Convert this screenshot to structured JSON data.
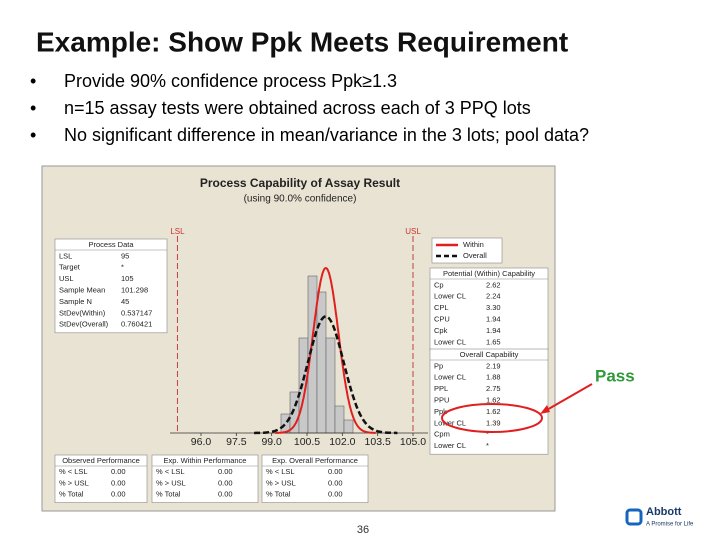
{
  "title": "Example: Show Ppk Meets Requirement",
  "bullets": [
    "Provide 90% confidence process Ppk≥1.3",
    "n=15 assay tests were obtained across each of 3 PPQ lots",
    "No significant difference in mean/variance in the 3 lots; pool data?"
  ],
  "figure": {
    "title": "Process Capability of Assay Result",
    "subtitle": "(using 90.0% confidence)",
    "lsl_label": "LSL",
    "usl_label": "USL",
    "x_tick_labels": [
      "96.0",
      "97.5",
      "99.0",
      "100.5",
      "102.0",
      "103.5",
      "105.0"
    ],
    "legend": [
      "Within",
      "Overall"
    ],
    "process_data": {
      "heading": "Process Data",
      "rows": [
        [
          "LSL",
          "95"
        ],
        [
          "Target",
          "*"
        ],
        [
          "USL",
          "105"
        ],
        [
          "Sample Mean",
          "101.298"
        ],
        [
          "Sample N",
          "45"
        ],
        [
          "StDev(Within)",
          "0.537147"
        ],
        [
          "StDev(Overall)",
          "0.760421"
        ]
      ]
    },
    "potential": {
      "heading": "Potential (Within) Capability",
      "rows": [
        [
          "Cp",
          "2.62"
        ],
        [
          "Lower CL",
          "2.24"
        ],
        [
          "CPL",
          "3.30"
        ],
        [
          "CPU",
          "1.94"
        ],
        [
          "Cpk",
          "1.94"
        ],
        [
          "Lower CL",
          "1.65"
        ]
      ]
    },
    "overall": {
      "heading": "Overall Capability",
      "rows": [
        [
          "Pp",
          "2.19"
        ],
        [
          "Lower CL",
          "1.88"
        ],
        [
          "PPL",
          "2.75"
        ],
        [
          "PPU",
          "1.62"
        ],
        [
          "Ppk",
          "1.62"
        ],
        [
          "Lower CL",
          "1.39"
        ],
        [
          "Cpm",
          "*"
        ],
        [
          "Lower CL",
          "*"
        ]
      ]
    },
    "observed": {
      "heading": "Observed Performance",
      "rows": [
        [
          "% < LSL",
          "0.00"
        ],
        [
          "% > USL",
          "0.00"
        ],
        [
          "% Total",
          "0.00"
        ]
      ]
    },
    "exp_within": {
      "heading": "Exp. Within Performance",
      "rows": [
        [
          "% < LSL",
          "0.00"
        ],
        [
          "% > USL",
          "0.00"
        ],
        [
          "% Total",
          "0.00"
        ]
      ]
    },
    "exp_overall": {
      "heading": "Exp. Overall Performance",
      "rows": [
        [
          "% < LSL",
          "0.00"
        ],
        [
          "% > USL",
          "0.00"
        ],
        [
          "% Total",
          "0.00"
        ]
      ]
    }
  },
  "annotation": "Pass",
  "page_number": "36",
  "logo": {
    "name": "Abbott",
    "tagline": "A Promise for Life"
  }
}
